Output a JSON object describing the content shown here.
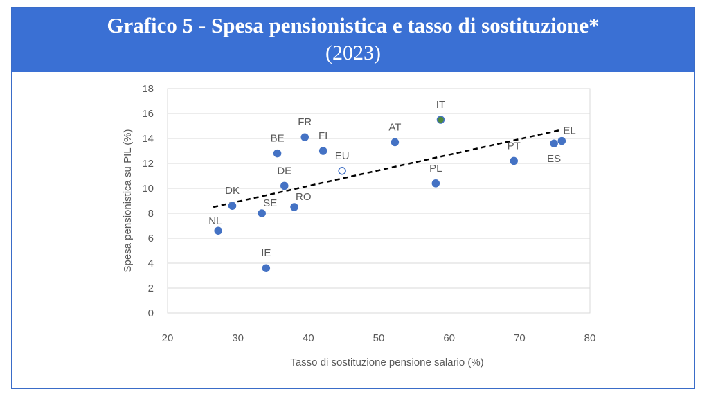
{
  "header": {
    "title": "Grafico 5 - Spesa pensionistica e tasso di sostituzione*",
    "subtitle": "(2023)"
  },
  "colors": {
    "banner": "#3a70d4",
    "frame": "#3a6cc8",
    "point": "#4472c4",
    "text": "#595959",
    "grid": "#d9d9d9",
    "trend": "#000000"
  },
  "chart_data": {
    "type": "scatter",
    "title": "Grafico 5 - Spesa pensionistica e tasso di sostituzione*",
    "subtitle": "(2023)",
    "xlabel": "Tasso di sostituzione pensione salario (%)",
    "ylabel": "Spesa pensionistica su PIL (%)",
    "xlim": [
      20,
      80
    ],
    "ylim": [
      0,
      18
    ],
    "xticks": [
      20,
      30,
      40,
      50,
      60,
      70,
      80
    ],
    "yticks": [
      0,
      2,
      4,
      6,
      8,
      10,
      12,
      14,
      16,
      18
    ],
    "grid": "horizontal",
    "points": [
      {
        "label": "NL",
        "x": 27.2,
        "y": 6.6,
        "style": "filled",
        "label_pos": "above-left"
      },
      {
        "label": "DK",
        "x": 29.2,
        "y": 8.6,
        "style": "filled",
        "label_pos": "above"
      },
      {
        "label": "SE",
        "x": 33.4,
        "y": 8.0,
        "style": "filled",
        "label_pos": "above-right"
      },
      {
        "label": "IE",
        "x": 34.0,
        "y": 3.6,
        "style": "filled",
        "label_pos": "above"
      },
      {
        "label": "BE",
        "x": 35.6,
        "y": 12.8,
        "style": "filled",
        "label_pos": "above"
      },
      {
        "label": "DE",
        "x": 36.6,
        "y": 10.2,
        "style": "filled",
        "label_pos": "above"
      },
      {
        "label": "RO",
        "x": 38.0,
        "y": 8.5,
        "style": "filled",
        "label_pos": "above-right"
      },
      {
        "label": "FR",
        "x": 39.5,
        "y": 14.1,
        "style": "filled",
        "label_pos": "above"
      },
      {
        "label": "FI",
        "x": 42.1,
        "y": 13.0,
        "style": "filled",
        "label_pos": "above"
      },
      {
        "label": "EU",
        "x": 44.8,
        "y": 11.4,
        "style": "hollow",
        "label_pos": "above"
      },
      {
        "label": "AT",
        "x": 52.3,
        "y": 13.7,
        "style": "filled",
        "label_pos": "above"
      },
      {
        "label": "PL",
        "x": 58.1,
        "y": 10.4,
        "style": "filled",
        "label_pos": "above"
      },
      {
        "label": "IT",
        "x": 58.8,
        "y": 15.5,
        "style": "filled-green",
        "label_pos": "above"
      },
      {
        "label": "PT",
        "x": 69.2,
        "y": 12.2,
        "style": "filled",
        "label_pos": "above"
      },
      {
        "label": "ES",
        "x": 74.9,
        "y": 13.6,
        "style": "filled",
        "label_pos": "below"
      },
      {
        "label": "EL",
        "x": 76.0,
        "y": 13.8,
        "style": "filled",
        "label_pos": "above-right"
      }
    ],
    "trendline": {
      "style": "dashed",
      "x": [
        26.5,
        76.0
      ],
      "y": [
        8.5,
        14.7
      ]
    }
  }
}
